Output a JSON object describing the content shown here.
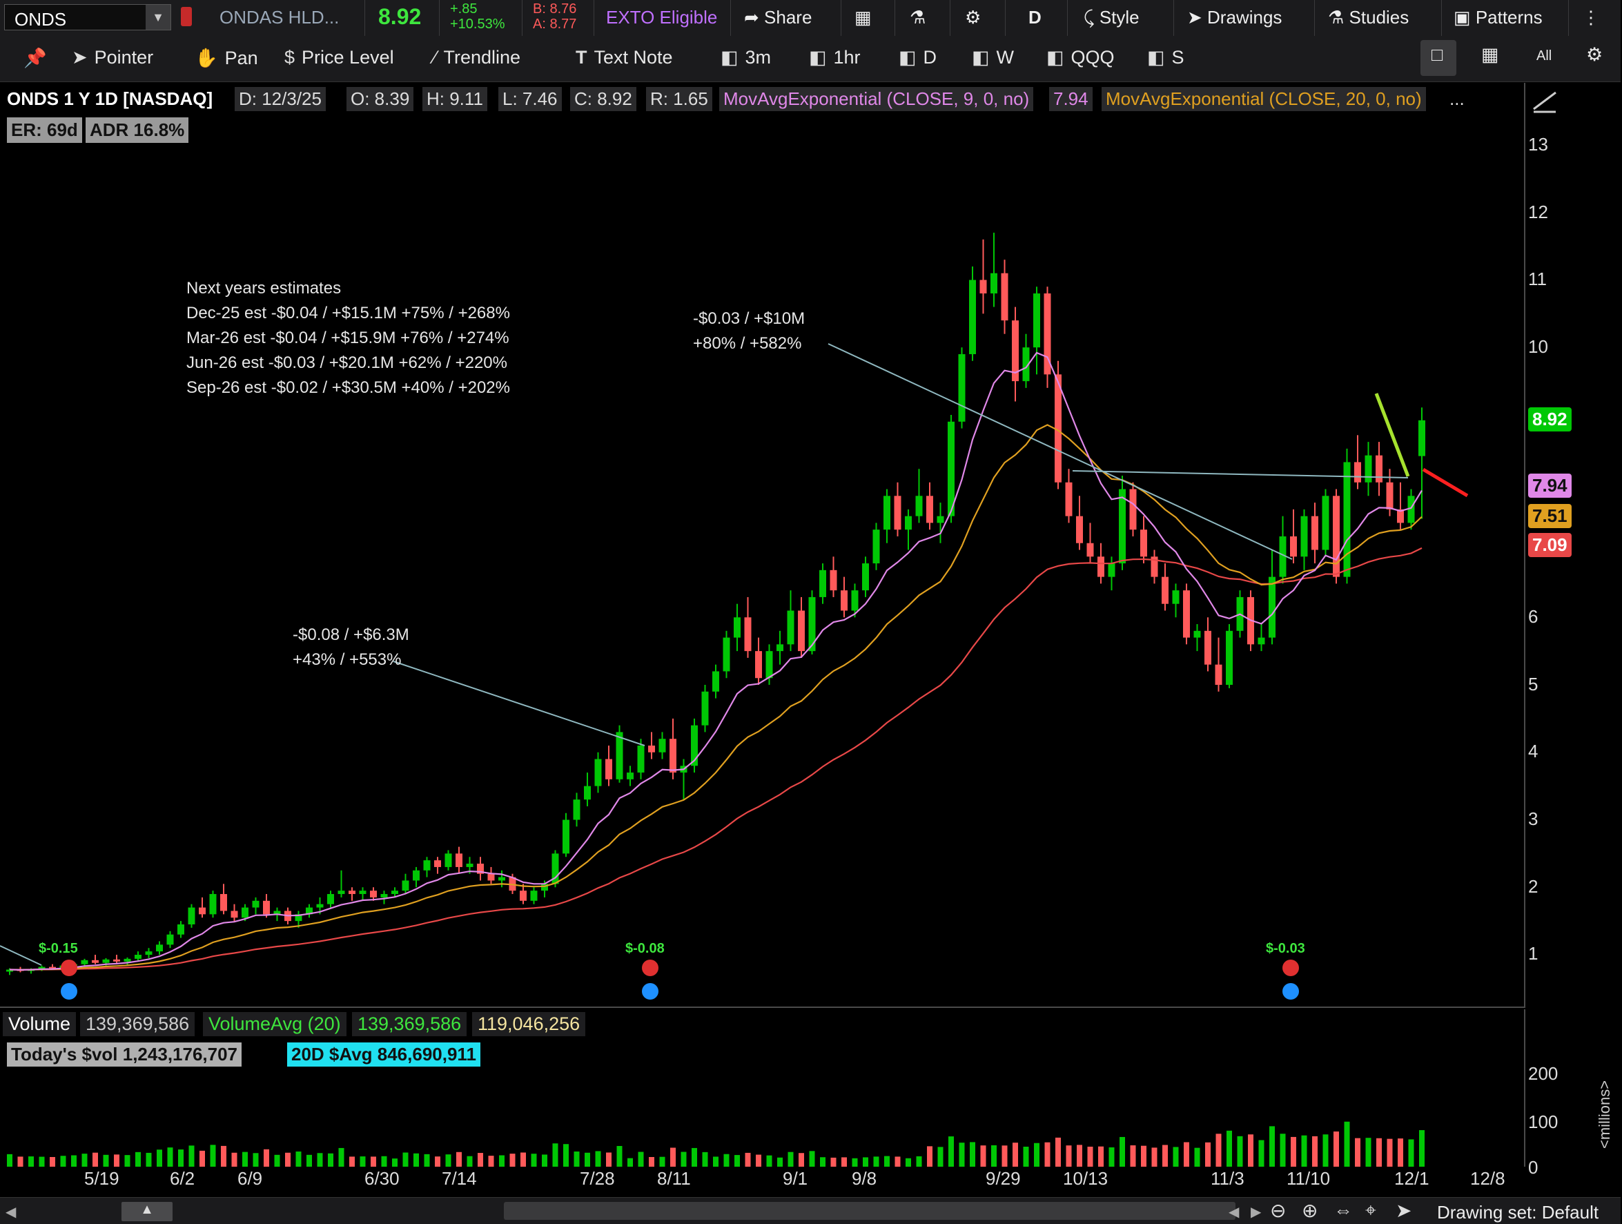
{
  "topbar": {
    "symbol": "ONDS",
    "company": "ONDAS HLD...",
    "last": "8.92",
    "change": "+.85",
    "change_pct": "+10.53%",
    "bid": "B: 8.76",
    "ask": "A: 8.77",
    "exto": "EXTO Eligible",
    "share": "Share",
    "period": "D",
    "style": "Style",
    "drawings": "Drawings",
    "studies": "Studies",
    "patterns": "Patterns"
  },
  "toolbar": {
    "pointer": "Pointer",
    "pan": "Pan",
    "price_level": "Price Level",
    "trendline": "Trendline",
    "text_note": "Text Note",
    "tf_3m": "3m",
    "tf_1hr": "1hr",
    "tf_d": "D",
    "tf_w": "W",
    "tf_qqq": "QQQ",
    "tf_s": "S",
    "all": "All"
  },
  "chart_header": {
    "title": "ONDS 1 Y 1D [NASDAQ]",
    "date": "D: 12/3/25",
    "open": "O: 8.39",
    "high": "H: 9.11",
    "low": "L: 7.46",
    "close": "C: 8.92",
    "range": "R: 1.65",
    "ema9_label": "MovAvgExponential (CLOSE, 9, 0, no)",
    "ema9_value": "7.94",
    "ema20_label": "MovAvgExponential (CLOSE, 20, 0, no)",
    "more": "..."
  },
  "badges": {
    "er": "ER: 69d",
    "adr": "ADR 16.8%"
  },
  "annotations": {
    "estimates": [
      "Next years estimates",
      "Dec-25 est -$0.04 / +$15.1M +75% / +268%",
      "Mar-26 est -$0.04 / +$15.9M +76% / +274%",
      "Jun-26 est -$0.03 / +$20.1M +62% / +220%",
      "Sep-26 est -$0.02 / +$30.5M +40% / +202%"
    ],
    "q1": [
      "-$0.08 / +$6.3M",
      "+43% / +553%"
    ],
    "q2": [
      "-$0.03 / +$10M",
      "+80% / +582%"
    ]
  },
  "earnings_markers": [
    "$-0.15",
    "$-0.08",
    "$-0.03"
  ],
  "price_axis": {
    "ticks": [
      "13",
      "12",
      "11",
      "10",
      "6",
      "5",
      "4",
      "3",
      "2",
      "1"
    ],
    "last_badge": "8.92",
    "ema9_badge": "7.94",
    "ema20_badge": "7.51",
    "ema50_badge": "7.09"
  },
  "volume": {
    "label": "Volume",
    "value": "139,369,586",
    "avg_label": "VolumeAvg (20)",
    "avg_value1": "139,369,586",
    "avg_value2": "119,046,256",
    "today_dollar": "Today's $vol 1,243,176,707",
    "avg_dollar": "20D $Avg 846,690,911",
    "axis_ticks": [
      "200",
      "100",
      "0"
    ],
    "axis_unit": "<millions>"
  },
  "x_axis": [
    "5/19",
    "6/2",
    "6/9",
    "6/30",
    "7/14",
    "7/28",
    "8/11",
    "9/1",
    "9/8",
    "9/29",
    "10/13",
    "11/3",
    "11/10",
    "12/1",
    "12/8"
  ],
  "status": {
    "drawing_set": "Drawing set: Default"
  },
  "colors": {
    "up": "#00c805",
    "down": "#ff5a5a",
    "ema9": "#e088e8",
    "ema20": "#e0a020",
    "ema50": "#e84848",
    "trend": "#8fb8c0",
    "accent_green": "#3ee63e",
    "cyan": "#20e0f0"
  },
  "chart_data": {
    "type": "candlestick",
    "title": "ONDS 1 Y 1D [NASDAQ]",
    "x_ticks": [
      "5/19",
      "6/2",
      "6/9",
      "6/30",
      "7/14",
      "7/28",
      "8/11",
      "9/1",
      "9/8",
      "9/29",
      "10/13",
      "11/3",
      "11/10",
      "12/1",
      "12/8"
    ],
    "ylim": [
      0.3,
      13.6
    ],
    "candles": [
      [
        0.75,
        0.8,
        0.7,
        0.78
      ],
      [
        0.78,
        0.82,
        0.74,
        0.76
      ],
      [
        0.76,
        0.8,
        0.72,
        0.79
      ],
      [
        0.79,
        0.84,
        0.76,
        0.82
      ],
      [
        0.82,
        0.86,
        0.78,
        0.8
      ],
      [
        0.8,
        0.85,
        0.76,
        0.84
      ],
      [
        0.84,
        0.9,
        0.8,
        0.86
      ],
      [
        0.86,
        0.94,
        0.82,
        0.92
      ],
      [
        0.92,
        1.0,
        0.86,
        0.88
      ],
      [
        0.88,
        0.95,
        0.84,
        0.93
      ],
      [
        0.93,
        1.0,
        0.88,
        0.9
      ],
      [
        0.9,
        0.96,
        0.85,
        0.94
      ],
      [
        0.94,
        1.05,
        0.9,
        1.0
      ],
      [
        1.0,
        1.1,
        0.95,
        1.05
      ],
      [
        1.05,
        1.2,
        1.0,
        1.15
      ],
      [
        1.15,
        1.35,
        1.1,
        1.3
      ],
      [
        1.3,
        1.5,
        1.25,
        1.45
      ],
      [
        1.45,
        1.75,
        1.4,
        1.7
      ],
      [
        1.7,
        1.85,
        1.55,
        1.6
      ],
      [
        1.6,
        1.95,
        1.55,
        1.9
      ],
      [
        1.9,
        2.05,
        1.6,
        1.65
      ],
      [
        1.65,
        1.75,
        1.5,
        1.55
      ],
      [
        1.55,
        1.75,
        1.5,
        1.7
      ],
      [
        1.7,
        1.85,
        1.6,
        1.8
      ],
      [
        1.8,
        1.9,
        1.55,
        1.6
      ],
      [
        1.6,
        1.7,
        1.5,
        1.65
      ],
      [
        1.65,
        1.7,
        1.45,
        1.5
      ],
      [
        1.5,
        1.65,
        1.4,
        1.6
      ],
      [
        1.6,
        1.75,
        1.55,
        1.7
      ],
      [
        1.7,
        1.85,
        1.6,
        1.75
      ],
      [
        1.75,
        1.95,
        1.7,
        1.9
      ],
      [
        1.9,
        2.25,
        1.85,
        1.95
      ],
      [
        1.95,
        2.0,
        1.8,
        1.9
      ],
      [
        1.9,
        2.0,
        1.8,
        1.95
      ],
      [
        1.95,
        2.0,
        1.8,
        1.85
      ],
      [
        1.85,
        1.95,
        1.75,
        1.9
      ],
      [
        1.9,
        2.0,
        1.85,
        1.95
      ],
      [
        1.95,
        2.2,
        1.9,
        2.1
      ],
      [
        2.1,
        2.3,
        2.0,
        2.25
      ],
      [
        2.25,
        2.45,
        2.15,
        2.4
      ],
      [
        2.4,
        2.45,
        2.2,
        2.3
      ],
      [
        2.3,
        2.55,
        2.25,
        2.5
      ],
      [
        2.5,
        2.6,
        2.2,
        2.3
      ],
      [
        2.3,
        2.45,
        2.2,
        2.35
      ],
      [
        2.35,
        2.45,
        2.1,
        2.2
      ],
      [
        2.2,
        2.3,
        2.05,
        2.1
      ],
      [
        2.1,
        2.25,
        2.0,
        2.15
      ],
      [
        2.15,
        2.2,
        1.9,
        1.95
      ],
      [
        1.95,
        2.05,
        1.75,
        1.8
      ],
      [
        1.8,
        2.0,
        1.75,
        1.95
      ],
      [
        1.95,
        2.1,
        1.85,
        2.05
      ],
      [
        2.05,
        2.55,
        2.0,
        2.5
      ],
      [
        2.5,
        3.1,
        2.45,
        3.0
      ],
      [
        3.0,
        3.4,
        2.9,
        3.3
      ],
      [
        3.3,
        3.7,
        3.2,
        3.5
      ],
      [
        3.5,
        4.0,
        3.4,
        3.9
      ],
      [
        3.9,
        4.1,
        3.5,
        3.6
      ],
      [
        3.6,
        4.4,
        3.55,
        4.3
      ],
      [
        3.6,
        3.8,
        3.5,
        3.7
      ],
      [
        3.7,
        4.2,
        3.6,
        4.1
      ],
      [
        4.1,
        4.3,
        3.9,
        4.0
      ],
      [
        4.0,
        4.3,
        3.9,
        4.2
      ],
      [
        4.2,
        4.5,
        3.6,
        3.7
      ],
      [
        3.7,
        3.9,
        3.3,
        3.8
      ],
      [
        3.8,
        4.5,
        3.7,
        4.4
      ],
      [
        4.4,
        5.0,
        4.3,
        4.9
      ],
      [
        4.9,
        5.3,
        4.8,
        5.2
      ],
      [
        5.2,
        5.8,
        5.1,
        5.7
      ],
      [
        5.7,
        6.2,
        5.5,
        6.0
      ],
      [
        6.0,
        6.3,
        5.4,
        5.5
      ],
      [
        5.5,
        5.7,
        5.0,
        5.1
      ],
      [
        5.1,
        5.6,
        5.0,
        5.5
      ],
      [
        5.5,
        5.8,
        5.3,
        5.6
      ],
      [
        5.6,
        6.4,
        5.5,
        6.1
      ],
      [
        6.1,
        6.3,
        5.4,
        5.5
      ],
      [
        5.5,
        6.4,
        5.45,
        6.3
      ],
      [
        6.3,
        6.8,
        6.2,
        6.7
      ],
      [
        6.7,
        6.9,
        6.3,
        6.4
      ],
      [
        6.4,
        6.6,
        6.0,
        6.1
      ],
      [
        6.1,
        6.5,
        6.0,
        6.4
      ],
      [
        6.4,
        6.9,
        6.3,
        6.8
      ],
      [
        6.8,
        7.4,
        6.7,
        7.3
      ],
      [
        7.3,
        7.9,
        7.1,
        7.8
      ],
      [
        7.8,
        8.0,
        7.2,
        7.3
      ],
      [
        7.3,
        7.6,
        7.0,
        7.5
      ],
      [
        7.5,
        8.2,
        7.4,
        7.8
      ],
      [
        7.8,
        8.0,
        7.3,
        7.4
      ],
      [
        7.4,
        7.7,
        7.1,
        7.5
      ],
      [
        7.5,
        9.0,
        7.4,
        8.9
      ],
      [
        8.9,
        10.0,
        8.8,
        9.9
      ],
      [
        9.9,
        11.2,
        9.8,
        11.0
      ],
      [
        11.0,
        11.6,
        10.5,
        10.8
      ],
      [
        10.8,
        11.7,
        10.6,
        11.1
      ],
      [
        11.1,
        11.3,
        10.2,
        10.4
      ],
      [
        10.4,
        10.6,
        9.2,
        9.5
      ],
      [
        9.5,
        10.2,
        9.4,
        10.0
      ],
      [
        10.0,
        10.9,
        9.6,
        10.8
      ],
      [
        10.8,
        10.9,
        9.4,
        9.6
      ],
      [
        9.6,
        9.8,
        7.9,
        8.0
      ],
      [
        8.0,
        8.2,
        7.4,
        7.5
      ],
      [
        7.5,
        7.8,
        7.0,
        7.1
      ],
      [
        7.1,
        7.4,
        6.8,
        6.9
      ],
      [
        6.9,
        7.1,
        6.5,
        6.6
      ],
      [
        6.6,
        6.9,
        6.4,
        6.8
      ],
      [
        6.8,
        8.1,
        6.7,
        7.9
      ],
      [
        7.9,
        8.0,
        7.2,
        7.3
      ],
      [
        7.3,
        7.5,
        6.8,
        6.9
      ],
      [
        6.9,
        7.0,
        6.5,
        6.6
      ],
      [
        6.6,
        6.8,
        6.1,
        6.2
      ],
      [
        6.2,
        6.5,
        6.0,
        6.4
      ],
      [
        6.4,
        6.5,
        5.6,
        5.7
      ],
      [
        5.7,
        5.9,
        5.5,
        5.8
      ],
      [
        5.8,
        6.0,
        5.2,
        5.3
      ],
      [
        5.3,
        5.7,
        4.9,
        5.0
      ],
      [
        5.0,
        5.9,
        4.95,
        5.8
      ],
      [
        5.8,
        6.4,
        5.7,
        6.3
      ],
      [
        6.3,
        6.4,
        5.5,
        5.6
      ],
      [
        5.6,
        5.9,
        5.5,
        5.7
      ],
      [
        5.7,
        7.0,
        5.6,
        6.6
      ],
      [
        6.6,
        7.5,
        6.5,
        7.2
      ],
      [
        7.2,
        7.6,
        6.8,
        6.9
      ],
      [
        6.9,
        7.6,
        6.7,
        7.5
      ],
      [
        7.5,
        7.7,
        6.8,
        7.0
      ],
      [
        7.0,
        7.9,
        6.9,
        7.8
      ],
      [
        7.8,
        7.9,
        6.5,
        6.6
      ],
      [
        6.6,
        8.5,
        6.5,
        8.3
      ],
      [
        8.3,
        8.7,
        7.9,
        8.0
      ],
      [
        8.0,
        8.6,
        7.8,
        8.4
      ],
      [
        8.4,
        8.6,
        7.8,
        8.0
      ],
      [
        8.0,
        8.2,
        7.5,
        7.6
      ],
      [
        7.6,
        8.0,
        7.3,
        7.4
      ],
      [
        7.4,
        7.9,
        7.3,
        7.8
      ],
      [
        8.39,
        9.11,
        7.46,
        8.92
      ]
    ]
  }
}
